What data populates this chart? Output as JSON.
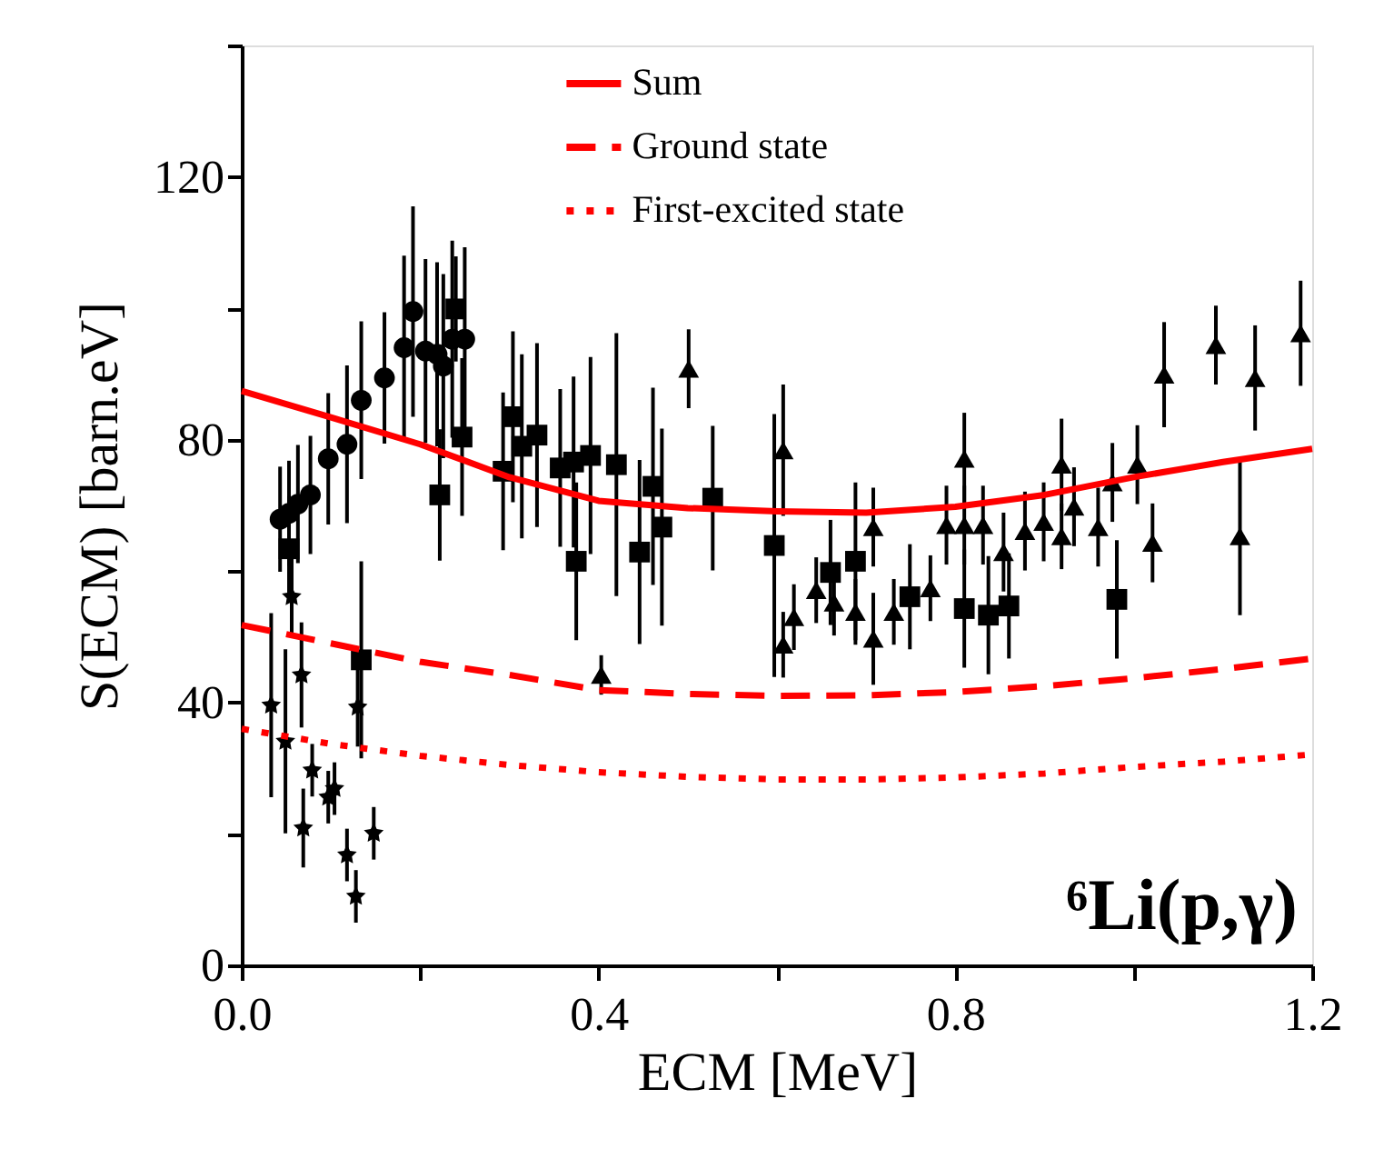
{
  "chart_data": {
    "type": "scatter",
    "xlabel": "ECM [MeV]",
    "ylabel": "S(ECM) [barn.eV]",
    "annotations": [
      "⁶Li(p,γ)"
    ],
    "xlim": [
      0,
      1.2
    ],
    "ylim": [
      0,
      140
    ],
    "xticks": [
      {
        "value": 0,
        "label": "0.0"
      },
      {
        "value": 0.2,
        "label": null
      },
      {
        "value": 0.4,
        "label": "0.4"
      },
      {
        "value": 0.6,
        "label": null
      },
      {
        "value": 0.8,
        "label": "0.8"
      },
      {
        "value": 1,
        "label": null
      },
      {
        "value": 1.2,
        "label": "1.2"
      }
    ],
    "yticks": [
      0,
      {
        "value": 20,
        "label": null
      },
      40,
      {
        "value": 60,
        "label": null
      },
      80,
      {
        "value": 100,
        "label": null
      },
      120,
      {
        "value": 140,
        "label": null
      }
    ],
    "grid": false,
    "legend": "top",
    "series": [
      {
        "type": "line",
        "name": "Sum",
        "color": "#ff0000",
        "line_style": "solid",
        "marker": "none",
        "x": [
          0,
          0.1,
          0.2,
          0.3,
          0.4,
          0.5,
          0.6,
          0.7,
          0.8,
          0.9,
          1.0,
          1.1,
          1.2
        ],
        "values": [
          87.4,
          83.4,
          79.3,
          74.3,
          70.7,
          69.6,
          69.1,
          68.9,
          69.8,
          71.6,
          74.3,
          76.6,
          78.6
        ]
      },
      {
        "type": "line",
        "name": "Ground state",
        "color": "#ff0000",
        "line_style": "dashed",
        "marker": "none",
        "x": [
          0,
          0.1,
          0.2,
          0.3,
          0.4,
          0.5,
          0.6,
          0.7,
          0.8,
          0.9,
          1.0,
          1.1,
          1.2
        ],
        "values": [
          51.8,
          49,
          46.2,
          44.2,
          41.9,
          41.3,
          41,
          41.1,
          41.6,
          42.5,
          43.7,
          45.1,
          46.7
        ]
      },
      {
        "type": "line",
        "name": "First-excited state",
        "color": "#ff0000",
        "line_style": "dotted",
        "marker": "none",
        "x": [
          0,
          0.1,
          0.2,
          0.3,
          0.4,
          0.5,
          0.6,
          0.7,
          0.8,
          0.9,
          1.0,
          1.1,
          1.2
        ],
        "values": [
          36,
          33.7,
          31.9,
          30.5,
          29.4,
          28.7,
          28.3,
          28.3,
          28.6,
          29.2,
          30.2,
          31,
          32.1
        ]
      },
      {
        "color": "#000000",
        "marker": "circle",
        "x": [
          0.043,
          0.053,
          0.063,
          0.077,
          0.097,
          0.118,
          0.134,
          0.16,
          0.182,
          0.192,
          0.206,
          0.219,
          0.226,
          0.236,
          0.25
        ],
        "values": [
          67.9,
          68.8,
          70.2,
          71.6,
          77.1,
          79.3,
          86,
          89.4,
          94,
          99.5,
          93.5,
          93,
          91.2,
          95.3,
          95.3
        ],
        "errors": [
          8,
          8,
          9,
          9,
          10,
          12,
          12,
          10,
          14,
          16,
          14,
          14,
          14,
          15,
          14
        ]
      },
      {
        "color": "#000000",
        "marker": "star",
        "x": [
          0.056,
          0.067,
          0.033,
          0.049,
          0.13,
          0.079,
          0.104,
          0.097,
          0.069,
          0.118,
          0.148,
          0.128
        ],
        "values": [
          56.1,
          44.2,
          39.6,
          34.1,
          39.3,
          29.7,
          26.9,
          25.6,
          20.9,
          16.8,
          20.1,
          10.5
        ],
        "errors": [
          6,
          8,
          14,
          14,
          6,
          4,
          4,
          4,
          6,
          4,
          4,
          4
        ]
      },
      {
        "color": "#000000",
        "marker": "square",
        "x": [
          0.134,
          0.222,
          0.247,
          0.24,
          0.053,
          0.293,
          0.314,
          0.331,
          0.304,
          0.357,
          0.372,
          0.375,
          0.391,
          0.42,
          0.461,
          0.446,
          0.471,
          0.528,
          0.597,
          0.66,
          0.688,
          0.749,
          0.81,
          0.837,
          0.86,
          0.981
        ],
        "values": [
          46.5,
          71.6,
          80.4,
          99.9,
          63.4,
          75.2,
          79,
          80.7,
          83.5,
          75.7,
          76.6,
          61.5,
          77.6,
          76.2,
          72.9,
          62.9,
          66.7,
          71.1,
          63.9,
          59.8,
          61.5,
          56.1,
          54.3,
          53.3,
          54.7,
          55.7
        ],
        "errors": [
          15,
          10,
          12,
          8,
          8,
          12,
          14,
          14,
          13,
          12,
          13,
          12,
          15,
          20,
          15,
          14,
          15,
          11,
          20,
          8,
          12,
          8,
          9,
          9,
          8,
          9
        ]
      },
      {
        "color": "#000000",
        "marker": "triangle",
        "x": [
          0.501,
          0.403,
          0.607,
          0.708,
          0.81,
          0.919,
          1.021,
          1.119
        ],
        "values": [
          90.8,
          44.2,
          78.4,
          66.7,
          77.1,
          65.3,
          64.3,
          65.3
        ],
        "errors": [
          6,
          3,
          10,
          6,
          7,
          5,
          6,
          12
        ]
      },
      {
        "color": "#000000",
        "marker": "triangle",
        "x": [
          0.607,
          0.619,
          0.644,
          0.664,
          0.688,
          0.708,
          0.731,
          0.772,
          0.79,
          0.81,
          0.831,
          0.854,
          0.878,
          0.899,
          0.919,
          0.933,
          0.96,
          0.976,
          1.004,
          1.034,
          1.092,
          1.136,
          1.187
        ],
        "values": [
          48.8,
          53,
          57.1,
          55.2,
          53.8,
          49.7,
          53.8,
          57.4,
          67,
          67,
          67,
          62.9,
          66.1,
          67.5,
          76.2,
          69.8,
          66.7,
          73.5,
          76.2,
          89.9,
          94.4,
          89.4,
          96.2
        ],
        "errors": [
          5,
          5,
          5,
          5,
          5,
          7,
          5,
          5,
          6,
          6,
          6,
          6,
          6,
          6,
          7,
          6,
          6,
          6,
          6,
          8,
          6,
          8,
          8
        ]
      }
    ]
  }
}
